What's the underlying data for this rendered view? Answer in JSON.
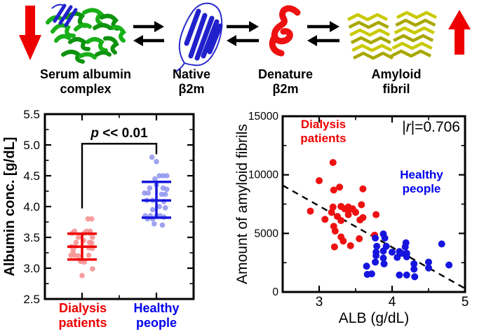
{
  "diagram": {
    "decrease_arrow_color": "#ee0000",
    "increase_arrow_color": "#ee0000",
    "equilibrium_arrow_color": "#000000",
    "stages": [
      {
        "id": "serum-albumin-complex",
        "label_line1": "Serum albumin",
        "label_line2": "complex",
        "color": "#18b018"
      },
      {
        "id": "native-b2m",
        "label_line1": "Native",
        "label_line2": "β2m",
        "color": "#2121cc"
      },
      {
        "id": "denature-b2m",
        "label_line1": "Denature",
        "label_line2": "β2m",
        "color": "#ee1111"
      },
      {
        "id": "amyloid-fibril",
        "label_line1": "Amyloid",
        "label_line2": "fibril",
        "color": "#c9c900"
      }
    ]
  },
  "chart_data": [
    {
      "type": "scatter",
      "subtype": "jittered-dot-plot-with-mean-sd",
      "title": "",
      "ylabel": "Albumin conc. [g/dL]",
      "ylim": [
        2.5,
        5.5
      ],
      "yticks": [
        2.5,
        3.0,
        3.5,
        4.0,
        4.5,
        5.0,
        5.5
      ],
      "ytick_minor_step": 0.25,
      "xlim": [
        0.5,
        2.5
      ],
      "xticks_major": [
        1,
        2
      ],
      "xticks_minor": [
        1.5
      ],
      "grid": false,
      "annotation": {
        "text": "p << 0.01",
        "bracket_y": 5.02,
        "left_x": 1,
        "right_x": 2,
        "left_drop_to": 3.97,
        "right_drop_to": 4.85
      },
      "groups": [
        {
          "name": "Dialysis patients",
          "label_line1": "Dialysis",
          "label_line2": "patients",
          "color": "#ee0000",
          "point_color": "#f68d8d",
          "x": 1,
          "mean": 3.35,
          "upper": 3.56,
          "lower": 3.14,
          "points": [
            [
              0.08,
              3.8
            ],
            [
              0.13,
              3.8
            ],
            [
              -0.1,
              3.6
            ],
            [
              0.06,
              3.6
            ],
            [
              0.11,
              3.6
            ],
            [
              -0.13,
              3.57
            ],
            [
              0.03,
              3.57
            ],
            [
              0.1,
              3.57
            ],
            [
              -0.05,
              3.5
            ],
            [
              0.14,
              3.5
            ],
            [
              -0.08,
              3.42
            ],
            [
              0.1,
              3.42
            ],
            [
              0.13,
              3.41
            ],
            [
              -0.14,
              3.35
            ],
            [
              -0.09,
              3.35
            ],
            [
              0.02,
              3.45
            ],
            [
              0.09,
              3.33
            ],
            [
              0.14,
              3.32
            ],
            [
              -0.12,
              3.28
            ],
            [
              -0.15,
              3.21
            ],
            [
              -0.1,
              3.21
            ],
            [
              -0.05,
              3.2
            ],
            [
              0.09,
              3.21
            ],
            [
              -0.02,
              3.11
            ],
            [
              0.03,
              3.1
            ],
            [
              0.14,
              2.99
            ],
            [
              0.0,
              2.88
            ]
          ]
        },
        {
          "name": "Healthy people",
          "label_line1": "Healthy",
          "label_line2": "people",
          "color": "#1515dd",
          "point_color": "#8e93ee",
          "x": 2,
          "mean": 4.1,
          "upper": 4.4,
          "lower": 3.82,
          "points": [
            [
              -0.06,
              4.8
            ],
            [
              0.0,
              4.73
            ],
            [
              0.04,
              4.5
            ],
            [
              0.09,
              4.5
            ],
            [
              0.14,
              4.5
            ],
            [
              -0.02,
              4.45
            ],
            [
              0.0,
              4.35
            ],
            [
              -0.09,
              4.3
            ],
            [
              0.09,
              4.3
            ],
            [
              0.14,
              4.28
            ],
            [
              -0.16,
              4.22
            ],
            [
              -0.11,
              4.22
            ],
            [
              0.07,
              4.2
            ],
            [
              0.12,
              4.2
            ],
            [
              -0.13,
              4.1
            ],
            [
              -0.05,
              4.1
            ],
            [
              0.1,
              4.08
            ],
            [
              0.04,
              4.0
            ],
            [
              0.12,
              3.98
            ],
            [
              -0.05,
              3.95
            ],
            [
              -0.15,
              3.85
            ],
            [
              -0.08,
              3.85
            ],
            [
              0.0,
              3.85
            ],
            [
              0.05,
              3.85
            ],
            [
              0.1,
              3.83
            ],
            [
              -0.12,
              3.8
            ],
            [
              -0.05,
              3.8
            ],
            [
              -0.03,
              3.72
            ],
            [
              0.08,
              3.7
            ]
          ]
        }
      ]
    },
    {
      "type": "scatter",
      "xlabel": "ALB (g/dL)",
      "ylabel": "Amount of amyloid fibrils",
      "xlim": [
        2.5,
        5.0
      ],
      "ylim": [
        0,
        15000
      ],
      "xticks": [
        3,
        4,
        5
      ],
      "xticks_minor": [
        3.5,
        4.5
      ],
      "yticks": [
        0,
        5000,
        10000,
        15000
      ],
      "yticks_minor": [
        2500,
        7500,
        12500
      ],
      "grid": false,
      "correlation_text": "|r|=0.706",
      "trend_line": {
        "style": "dashed",
        "x": [
          2.5,
          5.0
        ],
        "y": [
          9100,
          300
        ]
      },
      "series": [
        {
          "name": "Dialysis patients",
          "annotation_line1": "Dialysis",
          "annotation_line2": "patients",
          "color": "#ee1111",
          "points": [
            [
              2.88,
              6900
            ],
            [
              3.0,
              9500
            ],
            [
              3.19,
              11050
            ],
            [
              3.2,
              8700
            ],
            [
              3.28,
              8950
            ],
            [
              3.6,
              8800
            ],
            [
              3.58,
              7450
            ],
            [
              3.08,
              6200
            ],
            [
              3.17,
              6800
            ],
            [
              3.19,
              7250
            ],
            [
              3.3,
              7300
            ],
            [
              3.35,
              7100
            ],
            [
              3.4,
              7250
            ],
            [
              3.4,
              6950
            ],
            [
              3.4,
              6600
            ],
            [
              3.46,
              7100
            ],
            [
              3.5,
              6800
            ],
            [
              3.56,
              6150
            ],
            [
              3.6,
              6350
            ],
            [
              3.25,
              6450
            ],
            [
              3.3,
              6100
            ],
            [
              3.2,
              5600
            ],
            [
              3.22,
              5200
            ],
            [
              3.3,
              4700
            ],
            [
              3.33,
              4350
            ],
            [
              3.55,
              4550
            ],
            [
              3.21,
              3850
            ],
            [
              3.43,
              3950
            ],
            [
              3.78,
              6600
            ],
            [
              3.76,
              4850
            ]
          ]
        },
        {
          "name": "Healthy people",
          "annotation_line1": "Healthy",
          "annotation_line2": "people",
          "color": "#1515dd",
          "points": [
            [
              3.65,
              2200
            ],
            [
              3.66,
              1500
            ],
            [
              3.72,
              1550
            ],
            [
              3.77,
              4600
            ],
            [
              3.79,
              3900
            ],
            [
              3.78,
              3400
            ],
            [
              3.78,
              3100
            ],
            [
              3.77,
              2550
            ],
            [
              3.88,
              4950
            ],
            [
              3.9,
              4600
            ],
            [
              3.88,
              3500
            ],
            [
              3.92,
              3900
            ],
            [
              3.88,
              2900
            ],
            [
              3.89,
              2400
            ],
            [
              4.0,
              3400
            ],
            [
              4.07,
              2950
            ],
            [
              4.1,
              3450
            ],
            [
              4.13,
              3300
            ],
            [
              4.1,
              1450
            ],
            [
              4.18,
              3850
            ],
            [
              4.19,
              4200
            ],
            [
              4.2,
              3300
            ],
            [
              4.2,
              3000
            ],
            [
              4.2,
              1450
            ],
            [
              4.3,
              2400
            ],
            [
              4.3,
              1950
            ],
            [
              4.31,
              1300
            ],
            [
              4.5,
              2550
            ],
            [
              4.5,
              2050
            ],
            [
              4.68,
              4100
            ],
            [
              4.78,
              2300
            ]
          ]
        }
      ]
    }
  ]
}
